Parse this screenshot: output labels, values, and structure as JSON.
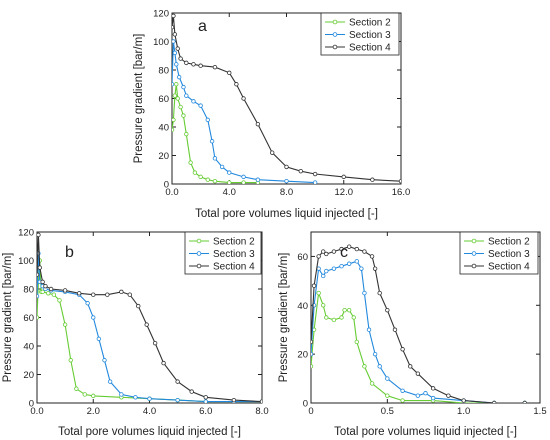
{
  "chart_data": [
    {
      "type": "line",
      "panel_label": "a",
      "xlabel": "Total pore volumes liquid injected [-]",
      "ylabel": "Pressure gradient [bar/m]",
      "xlim": [
        0,
        16
      ],
      "ylim": [
        0,
        120
      ],
      "xticks": [
        "0.0",
        "4.0",
        "8.0",
        "12.0",
        "16.0"
      ],
      "yticks": [
        "0",
        "20",
        "40",
        "60",
        "80",
        "100",
        "120"
      ],
      "legend_position": "top-right",
      "series": [
        {
          "name": "Section 2",
          "color": "#66cc33",
          "x": [
            0,
            0.1,
            0.2,
            0.3,
            0.4,
            0.6,
            0.8,
            1.0,
            1.3,
            1.6,
            2.0,
            2.5,
            3.0,
            4.0,
            5.0,
            6.0
          ],
          "y": [
            38,
            45,
            62,
            70,
            60,
            54,
            48,
            35,
            15,
            8,
            5,
            3,
            2,
            1,
            1,
            1
          ]
        },
        {
          "name": "Section 3",
          "color": "#2288dd",
          "x": [
            0,
            0.1,
            0.2,
            0.3,
            0.5,
            0.8,
            1.0,
            1.5,
            2.0,
            2.5,
            2.8,
            3.0,
            3.5,
            4.0,
            5.0,
            6.0,
            8.0,
            10.0
          ],
          "y": [
            70,
            100,
            92,
            84,
            75,
            68,
            62,
            58,
            55,
            45,
            30,
            18,
            12,
            8,
            5,
            3,
            2,
            1
          ]
        },
        {
          "name": "Section 4",
          "color": "#333333",
          "x": [
            0,
            0.1,
            0.2,
            0.4,
            0.6,
            1.0,
            1.5,
            2.0,
            3.0,
            4.0,
            4.5,
            5.0,
            6.0,
            7.0,
            8.0,
            9.0,
            10.0,
            12.0,
            14.0,
            16.0
          ],
          "y": [
            110,
            118,
            105,
            95,
            88,
            85,
            84,
            83,
            82,
            78,
            70,
            60,
            42,
            22,
            12,
            9,
            7,
            5,
            3,
            2
          ]
        }
      ]
    },
    {
      "type": "line",
      "panel_label": "b",
      "xlabel": "Total pore volumes liquid injected [-]",
      "ylabel": "Pressure gradient [bar/m]",
      "xlim": [
        0,
        8
      ],
      "ylim": [
        0,
        120
      ],
      "xticks": [
        "0.0",
        "2.0",
        "4.0",
        "6.0",
        "8.0"
      ],
      "yticks": [
        "0",
        "20",
        "40",
        "60",
        "80",
        "100",
        "120"
      ],
      "legend_position": "top-right",
      "series": [
        {
          "name": "Section 2",
          "color": "#66cc33",
          "x": [
            0,
            0.05,
            0.1,
            0.15,
            0.2,
            0.4,
            0.6,
            0.8,
            1.0,
            1.2,
            1.4,
            1.7,
            2.0,
            3.0,
            4.0,
            5.0,
            6.0,
            7.0,
            8.0
          ],
          "y": [
            60,
            85,
            100,
            78,
            78,
            77,
            76,
            72,
            55,
            30,
            10,
            6,
            5,
            4,
            3,
            2,
            1,
            1,
            1
          ]
        },
        {
          "name": "Section 3",
          "color": "#2288dd",
          "x": [
            0,
            0.05,
            0.1,
            0.2,
            0.3,
            0.5,
            1.0,
            1.5,
            1.8,
            2.0,
            2.2,
            2.4,
            2.6,
            3.0,
            3.5,
            4.0,
            5.0,
            6.0,
            7.0,
            8.0
          ],
          "y": [
            75,
            105,
            85,
            82,
            80,
            79,
            78,
            76,
            70,
            60,
            45,
            30,
            15,
            6,
            4,
            3,
            2,
            1,
            1,
            1
          ]
        },
        {
          "name": "Section 4",
          "color": "#333333",
          "x": [
            0,
            0.05,
            0.1,
            0.2,
            0.3,
            0.5,
            1.0,
            1.5,
            2.0,
            2.5,
            3.0,
            3.3,
            3.6,
            3.9,
            4.2,
            4.5,
            5.0,
            5.5,
            6.0,
            7.0,
            8.0
          ],
          "y": [
            90,
            118,
            95,
            85,
            82,
            80,
            79,
            77,
            76,
            76,
            78,
            76,
            68,
            55,
            42,
            28,
            15,
            8,
            4,
            2,
            1
          ]
        }
      ]
    },
    {
      "type": "line",
      "panel_label": "c",
      "xlabel": "Total pore volumes liquid injected [-]",
      "ylabel": "Pressure gradient [bar/m]",
      "xlim": [
        0,
        1.5
      ],
      "ylim": [
        0,
        70
      ],
      "xticks": [
        "0",
        "0.5",
        "1.0",
        "1.5"
      ],
      "yticks": [
        "0",
        "20",
        "40",
        "60"
      ],
      "legend_position": "top-right",
      "series": [
        {
          "name": "Section 2",
          "color": "#66cc33",
          "x": [
            0,
            0.02,
            0.05,
            0.08,
            0.1,
            0.15,
            0.2,
            0.22,
            0.25,
            0.28,
            0.3,
            0.35,
            0.4,
            0.5,
            0.6,
            0.8,
            1.0,
            1.2,
            1.4
          ],
          "y": [
            15,
            30,
            45,
            40,
            35,
            34,
            35,
            38,
            38,
            35,
            25,
            15,
            8,
            3,
            1,
            1,
            0,
            0,
            0
          ]
        },
        {
          "name": "Section 3",
          "color": "#2288dd",
          "x": [
            0,
            0.02,
            0.05,
            0.08,
            0.1,
            0.15,
            0.2,
            0.25,
            0.3,
            0.33,
            0.35,
            0.38,
            0.42,
            0.45,
            0.5,
            0.6,
            0.7,
            0.75,
            0.8,
            1.0,
            1.2,
            1.4
          ],
          "y": [
            20,
            40,
            55,
            52,
            54,
            55,
            56,
            57,
            58,
            55,
            45,
            30,
            20,
            15,
            10,
            5,
            3,
            4,
            2,
            1,
            0,
            0
          ]
        },
        {
          "name": "Section 4",
          "color": "#333333",
          "x": [
            0,
            0.02,
            0.05,
            0.08,
            0.1,
            0.15,
            0.2,
            0.25,
            0.3,
            0.35,
            0.4,
            0.42,
            0.45,
            0.5,
            0.55,
            0.6,
            0.65,
            0.7,
            0.8,
            0.9,
            1.0,
            1.2,
            1.4
          ],
          "y": [
            25,
            48,
            60,
            62,
            61,
            62,
            63,
            64,
            63,
            62,
            60,
            55,
            45,
            38,
            30,
            22,
            15,
            12,
            6,
            3,
            1,
            0,
            0
          ]
        }
      ]
    }
  ]
}
